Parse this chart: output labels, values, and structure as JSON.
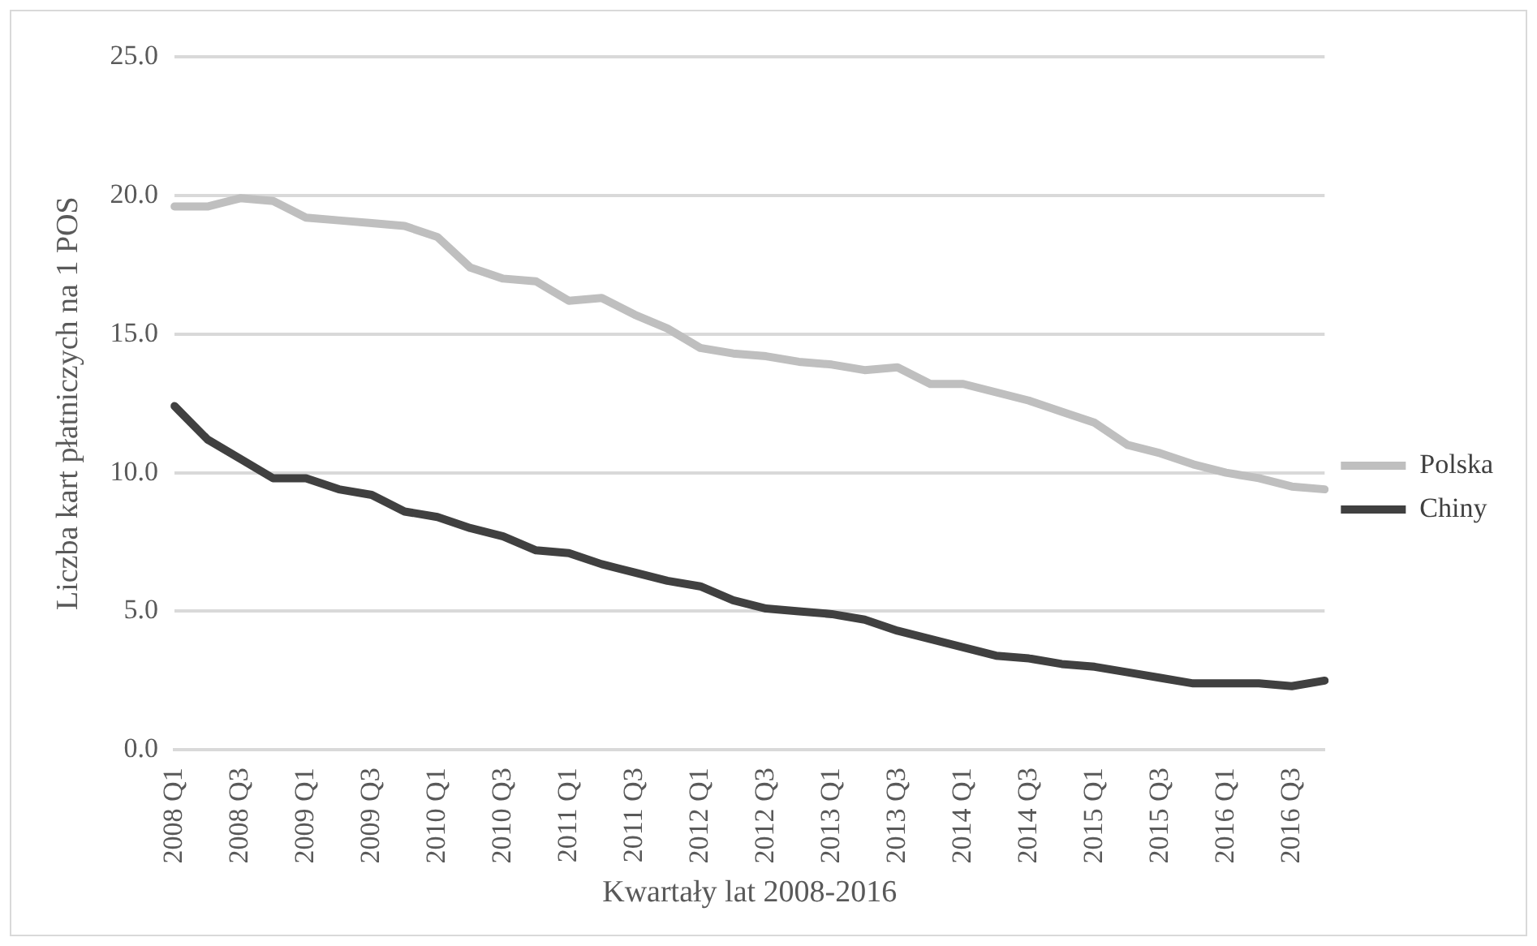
{
  "chart_data": {
    "type": "line",
    "xlabel": "Kwartały lat 2008-2016",
    "ylabel": "Liczba kart płatniczych na 1 POS",
    "categories": [
      "2008 Q1",
      null,
      "2008 Q3",
      null,
      "2009 Q1",
      null,
      "2009 Q3",
      null,
      "2010 Q1",
      null,
      "2010 Q3",
      null,
      "2011 Q1",
      null,
      "2011 Q3",
      null,
      "2012 Q1",
      null,
      "2012 Q3",
      null,
      "2013 Q1",
      null,
      "2013 Q3",
      null,
      "2014 Q1",
      null,
      "2014 Q3",
      null,
      "2015 Q1",
      null,
      "2015 Q3",
      null,
      "2016 Q1",
      null,
      "2016 Q3",
      null
    ],
    "series": [
      {
        "name": "Polska",
        "color": "#bfbfbf",
        "values": [
          19.6,
          19.6,
          19.9,
          19.8,
          19.2,
          19.1,
          19.0,
          18.9,
          18.5,
          17.4,
          17.0,
          16.9,
          16.2,
          16.3,
          15.7,
          15.2,
          14.5,
          14.3,
          14.2,
          14.0,
          13.9,
          13.7,
          13.8,
          13.2,
          13.2,
          12.9,
          12.6,
          12.2,
          11.8,
          11.0,
          10.7,
          10.3,
          10.0,
          9.8,
          9.5,
          9.4
        ]
      },
      {
        "name": "Chiny",
        "color": "#404040",
        "values": [
          12.4,
          11.2,
          10.5,
          9.8,
          9.8,
          9.4,
          9.2,
          8.6,
          8.4,
          8.0,
          7.7,
          7.2,
          7.1,
          6.7,
          6.4,
          6.1,
          5.9,
          5.4,
          5.1,
          5.0,
          4.9,
          4.7,
          4.3,
          4.0,
          3.7,
          3.4,
          3.3,
          3.1,
          3.0,
          2.8,
          2.6,
          2.4,
          2.4,
          2.4,
          2.3,
          2.5
        ]
      }
    ],
    "ylim": [
      0,
      25
    ],
    "yticks": [
      {
        "value": 0,
        "label": "0.0"
      },
      {
        "value": 5,
        "label": "5.0"
      },
      {
        "value": 10,
        "label": "10.0"
      },
      {
        "value": 15,
        "label": "15.0"
      },
      {
        "value": 20,
        "label": "20.0"
      },
      {
        "value": 25,
        "label": "25.0"
      }
    ],
    "grid": "y",
    "legend": "right",
    "marker": "none",
    "line_style": "solid"
  }
}
